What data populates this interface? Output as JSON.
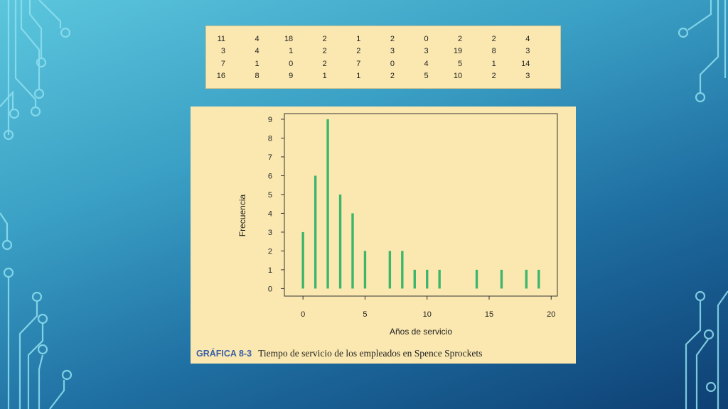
{
  "data_table": {
    "rows": [
      [
        "11",
        "4",
        "18",
        "2",
        "1",
        "2",
        "0",
        "2",
        "2",
        "4"
      ],
      [
        "3",
        "4",
        "1",
        "2",
        "2",
        "3",
        "3",
        "19",
        "8",
        "3"
      ],
      [
        "7",
        "1",
        "0",
        "2",
        "7",
        "0",
        "4",
        "5",
        "1",
        "14"
      ],
      [
        "16",
        "8",
        "9",
        "1",
        "1",
        "2",
        "5",
        "10",
        "2",
        "3"
      ]
    ]
  },
  "chart_data": {
    "type": "bar",
    "x": [
      0,
      1,
      2,
      3,
      4,
      5,
      7,
      8,
      9,
      10,
      11,
      14,
      16,
      18,
      19
    ],
    "values": [
      3,
      6,
      9,
      5,
      4,
      2,
      2,
      2,
      1,
      1,
      1,
      1,
      1,
      1,
      1
    ],
    "xlabel": "Años de servicio",
    "ylabel": "Frecuencia",
    "xlim": [
      -1.5,
      20.5
    ],
    "ylim": [
      -0.4,
      9.3
    ],
    "xticks": [
      "0",
      "5",
      "10",
      "15",
      "20"
    ],
    "yticks": [
      "0",
      "1",
      "2",
      "3",
      "4",
      "5",
      "6",
      "7",
      "8",
      "9"
    ],
    "bar_color": "#3db56b",
    "grid": false
  },
  "caption": {
    "label": "GRÁFICA 8-3",
    "text": "Tiempo de servicio de los empleados en Spence Sprockets"
  },
  "colors": {
    "panel_background": "#fbe8b0",
    "slide_background_top": "#5cc6dd",
    "slide_background_bottom": "#0e3f73",
    "circuit_lines": "#8fe0ef"
  }
}
